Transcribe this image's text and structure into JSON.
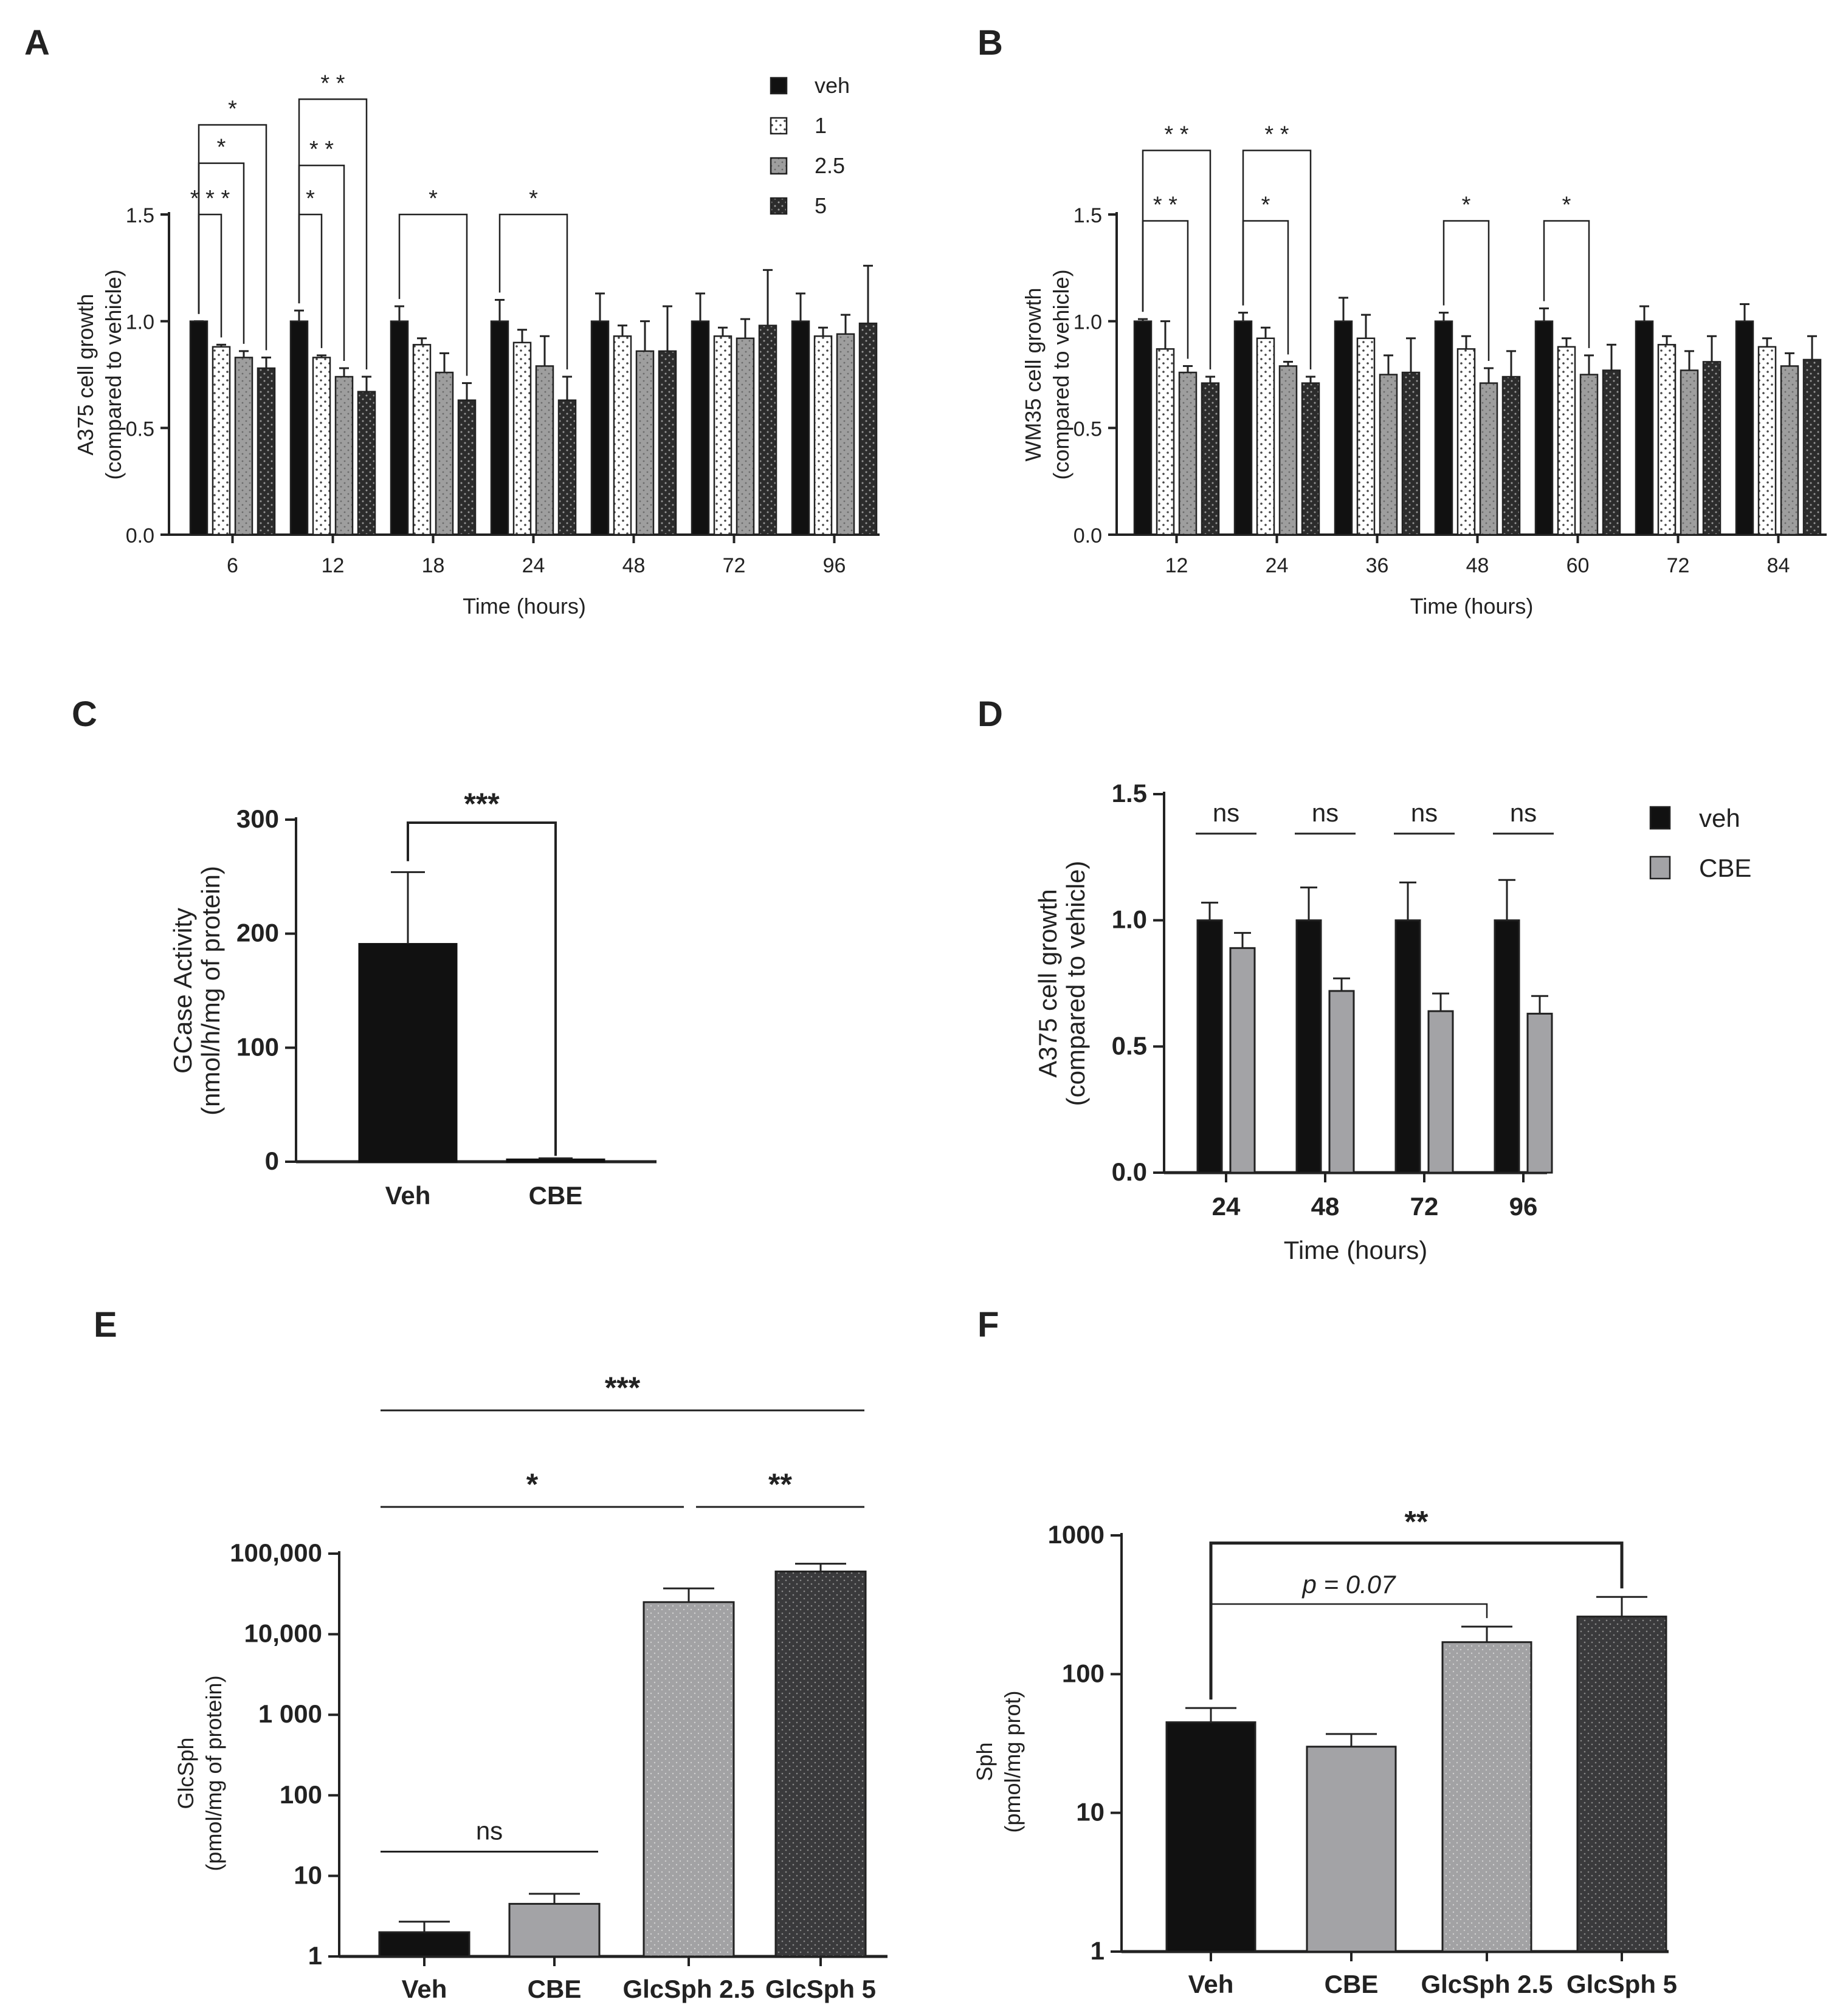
{
  "chart_data": [
    {
      "panel": "A",
      "type": "bar",
      "categories": [
        "6",
        "12",
        "18",
        "24",
        "48",
        "72",
        "96"
      ],
      "xlabel": "Time (hours)",
      "ylabel": "A375 cell growth",
      "ylabel2": "(compared to vehicle)",
      "ylim": [
        0,
        1.5
      ],
      "yticks": [
        "0.0",
        "0.5",
        "1.0",
        "1.5"
      ],
      "ytick_values": [
        0,
        0.5,
        1.0,
        1.5
      ],
      "legend": [
        "veh",
        "1",
        "2.5",
        "5"
      ],
      "series": [
        {
          "name": "veh",
          "values": [
            1.0,
            1.0,
            1.0,
            1.0,
            1.0,
            1.0,
            1.0
          ],
          "errors": [
            0.0,
            0.05,
            0.07,
            0.1,
            0.13,
            0.13,
            0.13
          ]
        },
        {
          "name": "1",
          "values": [
            0.88,
            0.83,
            0.89,
            0.9,
            0.93,
            0.93,
            0.93
          ],
          "errors": [
            0.01,
            0.01,
            0.03,
            0.06,
            0.05,
            0.04,
            0.04
          ]
        },
        {
          "name": "2.5",
          "values": [
            0.83,
            0.74,
            0.76,
            0.79,
            0.86,
            0.92,
            0.94
          ],
          "errors": [
            0.03,
            0.04,
            0.09,
            0.14,
            0.14,
            0.09,
            0.09
          ]
        },
        {
          "name": "5",
          "values": [
            0.78,
            0.67,
            0.63,
            0.63,
            0.86,
            0.98,
            0.99
          ],
          "errors": [
            0.05,
            0.07,
            0.08,
            0.11,
            0.21,
            0.26,
            0.27
          ]
        }
      ],
      "annotations": [
        {
          "g1": 0,
          "s1": 0,
          "g2": 0,
          "s2": 1,
          "label": "* * *",
          "y": 1.5
        },
        {
          "g1": 0,
          "s1": 0,
          "g2": 0,
          "s2": 2,
          "label": "*",
          "y": 1.74
        },
        {
          "g1": 0,
          "s1": 0,
          "g2": 0,
          "s2": 3,
          "label": "*",
          "y": 1.92
        },
        {
          "g1": 1,
          "s1": 0,
          "g2": 1,
          "s2": 1,
          "label": "*",
          "y": 1.5
        },
        {
          "g1": 1,
          "s1": 0,
          "g2": 1,
          "s2": 2,
          "label": "* *",
          "y": 1.73
        },
        {
          "g1": 1,
          "s1": 0,
          "g2": 1,
          "s2": 3,
          "label": "* *",
          "y": 2.04
        },
        {
          "g1": 2,
          "s1": 0,
          "g2": 2,
          "s2": 3,
          "label": "*",
          "y": 1.5
        },
        {
          "g1": 3,
          "s1": 0,
          "g2": 3,
          "s2": 3,
          "label": "*",
          "y": 1.5
        }
      ]
    },
    {
      "panel": "B",
      "type": "bar",
      "categories": [
        "12",
        "24",
        "36",
        "48",
        "60",
        "72",
        "84"
      ],
      "xlabel": "Time (hours)",
      "ylabel": "WM35 cell growth",
      "ylabel2": "(compared to vehicle)",
      "ylim": [
        0,
        1.5
      ],
      "yticks": [
        "0.0",
        "0.5",
        "1.0",
        "1.5"
      ],
      "ytick_values": [
        0,
        0.5,
        1.0,
        1.5
      ],
      "series": [
        {
          "name": "veh",
          "values": [
            1.0,
            1.0,
            1.0,
            1.0,
            1.0,
            1.0,
            1.0
          ],
          "errors": [
            0.01,
            0.04,
            0.11,
            0.04,
            0.06,
            0.07,
            0.08
          ]
        },
        {
          "name": "1",
          "values": [
            0.87,
            0.92,
            0.92,
            0.87,
            0.88,
            0.89,
            0.88
          ],
          "errors": [
            0.13,
            0.05,
            0.11,
            0.06,
            0.04,
            0.04,
            0.04
          ]
        },
        {
          "name": "2.5",
          "values": [
            0.76,
            0.79,
            0.75,
            0.71,
            0.75,
            0.77,
            0.79
          ],
          "errors": [
            0.03,
            0.02,
            0.09,
            0.07,
            0.09,
            0.09,
            0.06
          ]
        },
        {
          "name": "5",
          "values": [
            0.71,
            0.71,
            0.76,
            0.74,
            0.77,
            0.81,
            0.82
          ],
          "errors": [
            0.03,
            0.03,
            0.16,
            0.12,
            0.12,
            0.12,
            0.11
          ]
        }
      ],
      "annotations": [
        {
          "g1": 0,
          "s1": 0,
          "g2": 0,
          "s2": 2,
          "label": "* *",
          "y": 1.47
        },
        {
          "g1": 0,
          "s1": 0,
          "g2": 0,
          "s2": 3,
          "label": "* *",
          "y": 1.8
        },
        {
          "g1": 1,
          "s1": 0,
          "g2": 1,
          "s2": 2,
          "label": "*",
          "y": 1.47
        },
        {
          "g1": 1,
          "s1": 0,
          "g2": 1,
          "s2": 3,
          "label": "* *",
          "y": 1.8
        },
        {
          "g1": 3,
          "s1": 0,
          "g2": 3,
          "s2": 2,
          "label": "*",
          "y": 1.47
        },
        {
          "g1": 4,
          "s1": 0,
          "g2": 4,
          "s2": 2,
          "label": "*",
          "y": 1.47
        }
      ]
    },
    {
      "panel": "C",
      "type": "bar",
      "categories": [
        "Veh",
        "CBE"
      ],
      "values": [
        191,
        2
      ],
      "errors": [
        63,
        1
      ],
      "ylabel": "GCase Activity",
      "ylabel2": "(nmol/h/mg of protein)",
      "ylim": [
        0,
        300
      ],
      "yticks": [
        "0",
        "100",
        "200",
        "300"
      ],
      "ytick_values": [
        0,
        100,
        200,
        300
      ],
      "annotations": [
        {
          "g1": 0,
          "g2": 1,
          "label": "***",
          "y": 300
        }
      ]
    },
    {
      "panel": "D",
      "type": "bar",
      "categories": [
        "24",
        "48",
        "72",
        "96"
      ],
      "xlabel": "Time (hours)",
      "ylabel": "A375 cell growth",
      "ylabel2": "(compared to vehicle)",
      "ylim": [
        0,
        1.5
      ],
      "yticks": [
        "0.0",
        "0.5",
        "1.0",
        "1.5"
      ],
      "ytick_values": [
        0,
        0.5,
        1.0,
        1.5
      ],
      "legend": [
        "veh",
        "CBE"
      ],
      "series": [
        {
          "name": "veh",
          "values": [
            1.0,
            1.0,
            1.0,
            1.0
          ],
          "errors": [
            0.07,
            0.13,
            0.15,
            0.16
          ]
        },
        {
          "name": "CBE",
          "values": [
            0.89,
            0.72,
            0.64,
            0.63
          ],
          "errors": [
            0.06,
            0.05,
            0.07,
            0.07
          ]
        }
      ],
      "annotations": [
        {
          "g": 0,
          "label": "ns"
        },
        {
          "g": 1,
          "label": "ns"
        },
        {
          "g": 2,
          "label": "ns"
        },
        {
          "g": 3,
          "label": "ns"
        }
      ]
    },
    {
      "panel": "E",
      "type": "bar",
      "scale": "log",
      "categories": [
        "Veh",
        "CBE",
        "GlcSph 2.5",
        "GlcSph 5"
      ],
      "values": [
        2,
        4.5,
        25000,
        60000
      ],
      "errors": [
        0.7,
        1.5,
        12000,
        15000
      ],
      "ylabel": "GlcSph",
      "ylabel2": "(pmol/mg of protein)",
      "ylim": [
        1,
        100000
      ],
      "yticks": [
        "1",
        "10",
        "100",
        "1 000",
        "10,000",
        "100,000"
      ],
      "ytick_values": [
        1,
        10,
        100,
        1000,
        10000,
        100000
      ],
      "annotations": [
        {
          "g1": 0,
          "g2": 1,
          "label": "ns",
          "y": 20
        },
        {
          "g1": 0,
          "g2": 2,
          "label": "*",
          "y": 380000
        },
        {
          "g1": 2,
          "g2": 3,
          "label": "**",
          "y": 380000
        },
        {
          "g1": 0,
          "g2": 3,
          "label": "***",
          "y": 6000000
        }
      ]
    },
    {
      "panel": "F",
      "type": "bar",
      "scale": "log",
      "categories": [
        "Veh",
        "CBE",
        "GlcSph 2.5",
        "GlcSph 5"
      ],
      "values": [
        45,
        30,
        170,
        260
      ],
      "errors": [
        12,
        7,
        50,
        100
      ],
      "ylabel": "Sph",
      "ylabel2": "(pmol/mg prot)",
      "ylim": [
        1,
        1000
      ],
      "yticks": [
        "1",
        "10",
        "100",
        "1000"
      ],
      "ytick_values": [
        1,
        10,
        100,
        1000
      ],
      "annotations": [
        {
          "g1": 0,
          "g2": 2,
          "label": "p = 0.07",
          "y": 320
        },
        {
          "g1": 0,
          "g2": 3,
          "label": "**",
          "y": 880
        }
      ]
    }
  ]
}
